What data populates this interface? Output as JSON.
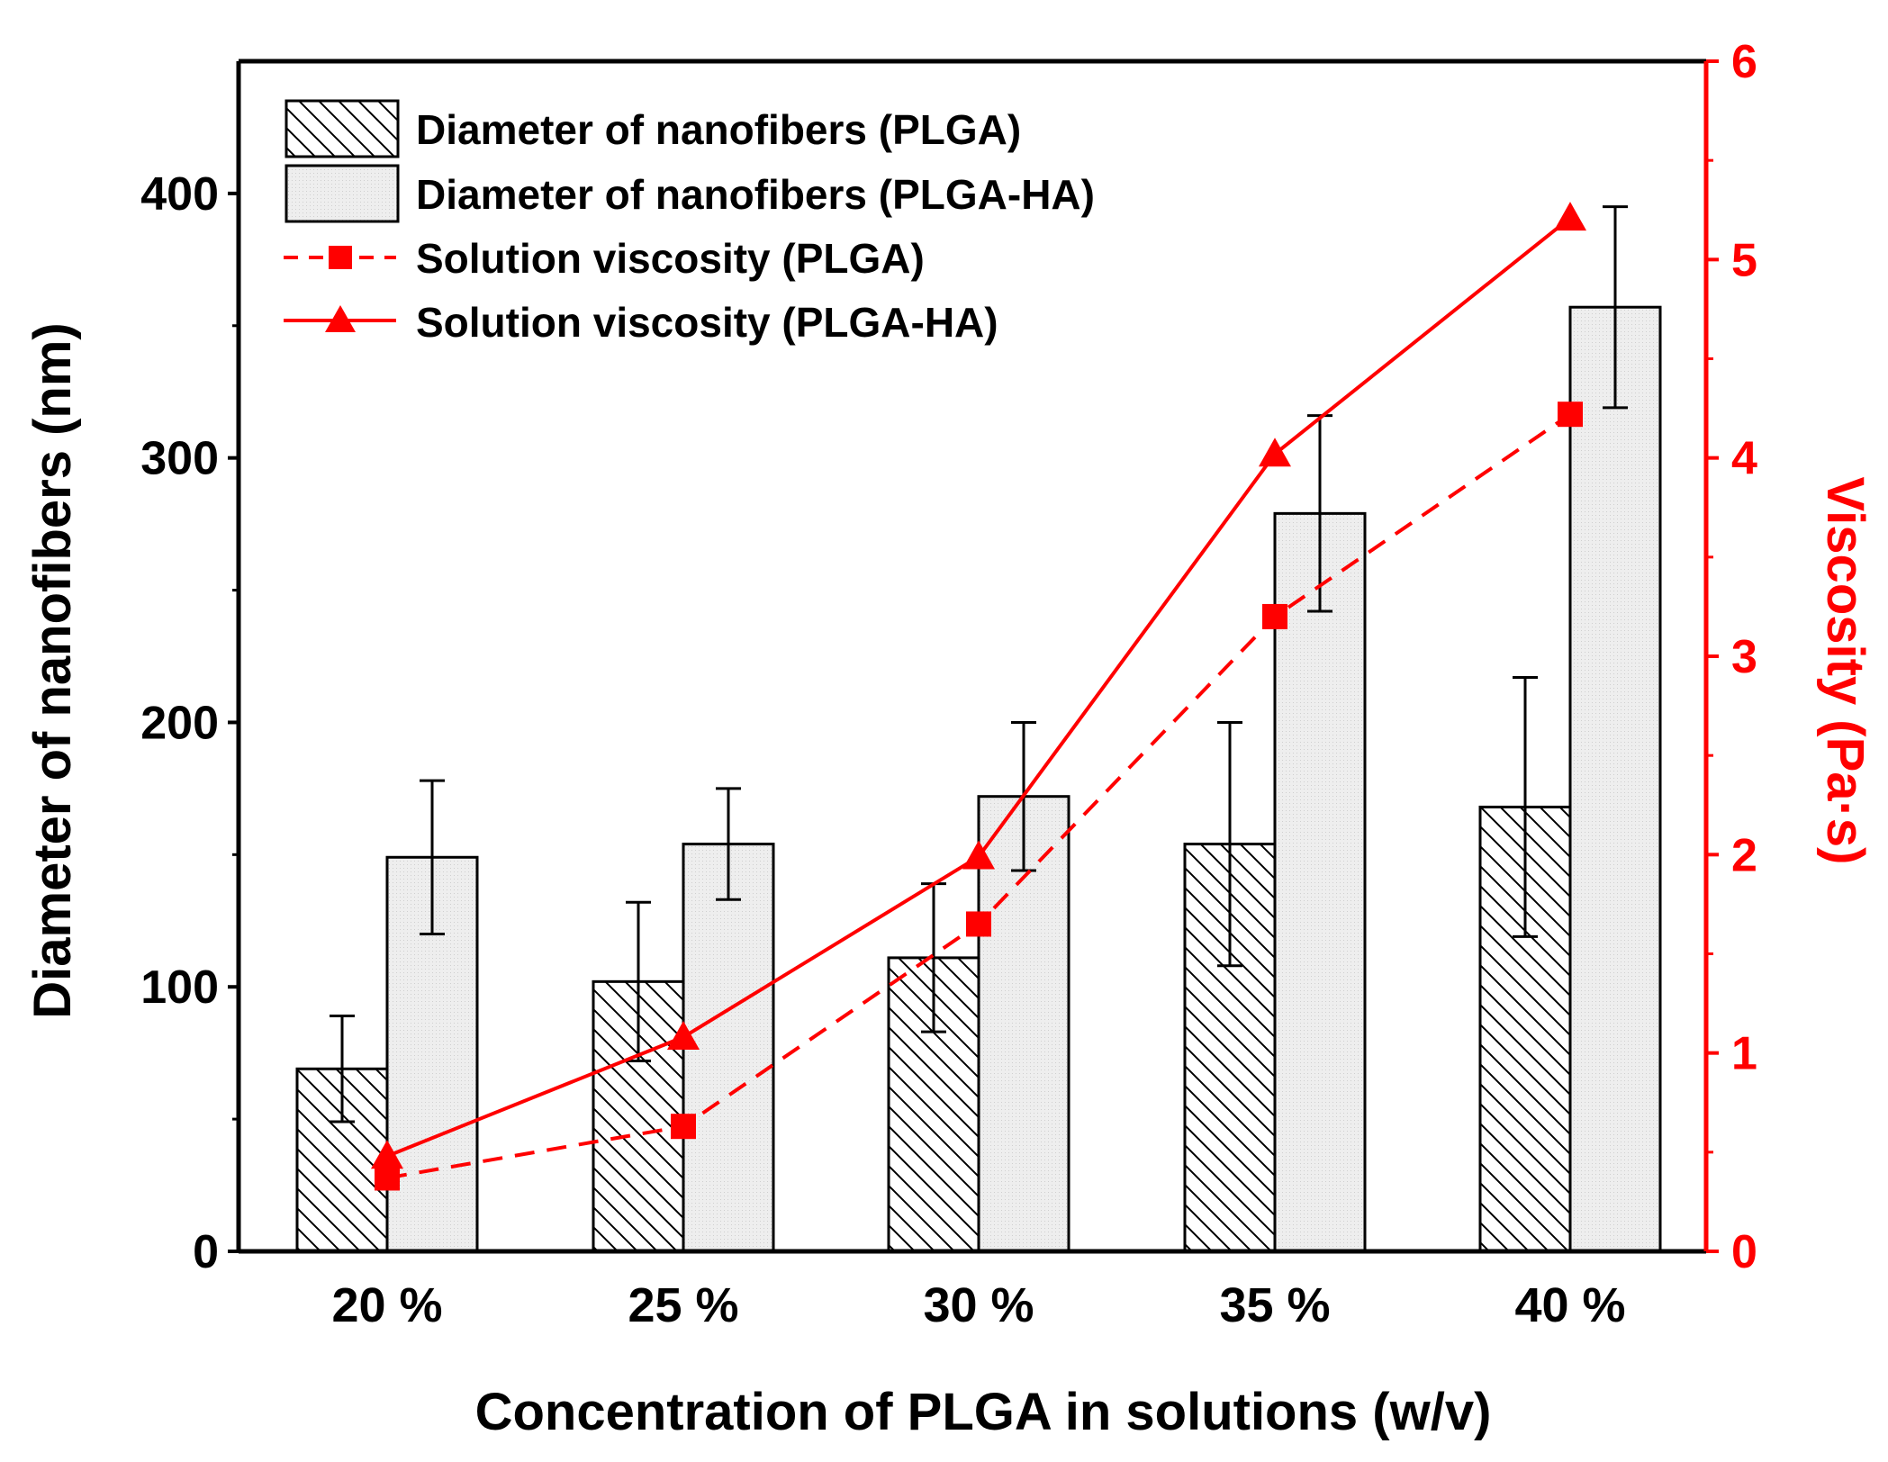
{
  "chart_data": {
    "type": "bar+line",
    "x_title": "Concentration of PLGA in solutions (w/v)",
    "categories": [
      "20 %",
      "25 %",
      "30 %",
      "35 %",
      "40 %"
    ],
    "y_left": {
      "title": "Diameter of nanofibers (nm)",
      "range": [
        0,
        450
      ],
      "ticks": [
        "0",
        "100",
        "200",
        "300",
        "400"
      ],
      "tick_values": [
        0,
        100,
        200,
        300,
        400
      ],
      "minor_tick_values": [
        50,
        150,
        250,
        350
      ]
    },
    "y_right": {
      "title": "Viscosity (Pa·s)",
      "range": [
        0,
        6
      ],
      "ticks": [
        "0",
        "1",
        "2",
        "3",
        "4",
        "5",
        "6"
      ],
      "tick_values": [
        0,
        1,
        2,
        3,
        4,
        5,
        6
      ],
      "minor_tick_values": [
        0.5,
        1.5,
        2.5,
        3.5,
        4.5,
        5.5
      ],
      "color": "#ff0000"
    },
    "bar_series": [
      {
        "name": "Diameter of nanofibers (PLGA)",
        "style": "hatched",
        "values": [
          69,
          102,
          111,
          154,
          168
        ],
        "errors": [
          20,
          30,
          28,
          46,
          49
        ]
      },
      {
        "name": "Diameter of nanofibers (PLGA-HA)",
        "style": "light-gray",
        "values": [
          149,
          154,
          172,
          279,
          357
        ],
        "errors": [
          29,
          21,
          28,
          37,
          38
        ]
      }
    ],
    "line_series": [
      {
        "name": "Solution viscosity (PLGA)",
        "marker": "square",
        "line": "dashed",
        "values": [
          0.37,
          0.63,
          1.65,
          3.2,
          4.22
        ],
        "color": "#ff0000"
      },
      {
        "name": "Solution viscosity (PLGA-HA)",
        "marker": "triangle",
        "line": "solid",
        "values": [
          0.48,
          1.08,
          1.99,
          4.02,
          5.21
        ],
        "color": "#ff0000"
      }
    ],
    "legend": {
      "position": "top-left",
      "entries": [
        "Diameter of nanofibers (PLGA)",
        "Diameter of nanofibers (PLGA-HA)",
        "Solution viscosity (PLGA)",
        "Solution viscosity (PLGA-HA)"
      ]
    }
  }
}
